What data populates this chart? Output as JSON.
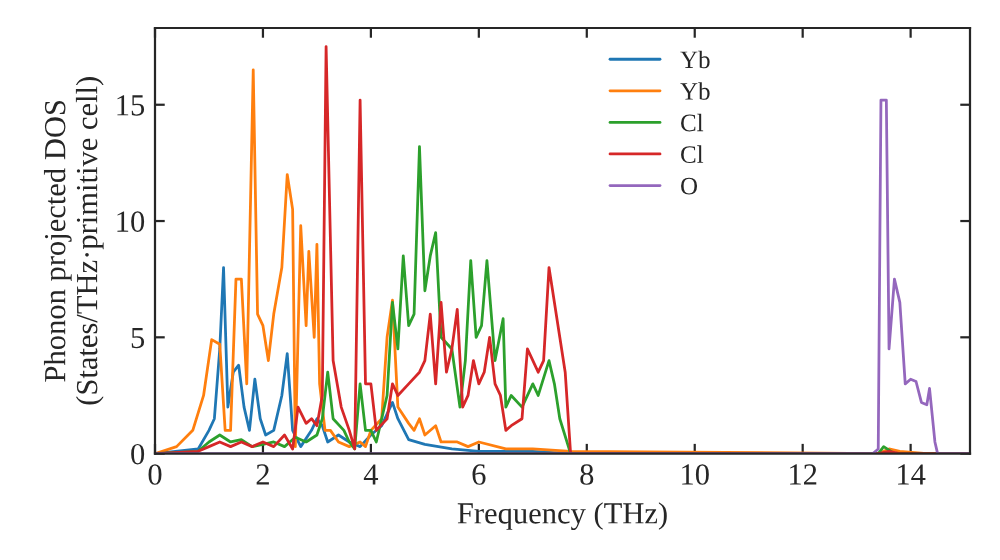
{
  "chart_data": {
    "type": "line",
    "xlabel": "Frequency (THz)",
    "ylabel": "Phonon projected DOS\n(States/THz·primitive cell)",
    "xlim": [
      0,
      15.1
    ],
    "ylim": [
      0,
      18.3
    ],
    "xticks": [
      0,
      2,
      4,
      6,
      8,
      10,
      12,
      14
    ],
    "yticks": [
      0,
      5,
      10,
      15
    ],
    "grid": false,
    "legend": "top",
    "marker": "none",
    "line_style": "solid",
    "series": [
      {
        "name": "Yb",
        "color": "#1f77b4",
        "x": [
          0,
          0.8,
          1.0,
          1.1,
          1.2,
          1.27,
          1.35,
          1.45,
          1.55,
          1.65,
          1.75,
          1.85,
          1.95,
          2.05,
          2.2,
          2.35,
          2.45,
          2.55,
          2.7,
          2.9,
          3.0,
          3.1,
          3.2,
          3.4,
          3.6,
          3.8,
          4.0,
          4.2,
          4.4,
          4.5,
          4.7,
          5.0,
          5.5,
          6.0,
          7.0,
          7.7
        ],
        "values": [
          0,
          0.2,
          1,
          1.5,
          4.5,
          8,
          2,
          3.5,
          3.8,
          2,
          1,
          3.2,
          1.5,
          0.8,
          1,
          2.5,
          4.3,
          1,
          0.3,
          1,
          1.5,
          1.2,
          0.5,
          0.8,
          0.5,
          0.3,
          0.8,
          1.2,
          2.2,
          1.5,
          0.6,
          0.4,
          0.2,
          0.1,
          0.1,
          0
        ]
      },
      {
        "name": "Yb",
        "color": "#ff7f0e",
        "x": [
          0,
          0.4,
          0.7,
          0.9,
          1.05,
          1.2,
          1.3,
          1.4,
          1.5,
          1.6,
          1.7,
          1.82,
          1.9,
          2.0,
          2.1,
          2.2,
          2.35,
          2.45,
          2.55,
          2.6,
          2.7,
          2.8,
          2.85,
          2.95,
          3.0,
          3.05,
          3.15,
          3.25,
          3.4,
          3.6,
          3.8,
          3.9,
          4.0,
          4.2,
          4.3,
          4.4,
          4.5,
          4.7,
          4.8,
          4.9,
          5.0,
          5.2,
          5.3,
          5.6,
          5.8,
          6.0,
          6.5,
          7.0,
          7.7,
          13.4,
          13.6,
          13.8,
          14.3,
          15.1
        ],
        "values": [
          0,
          0.3,
          1,
          2.5,
          4.9,
          4.7,
          1,
          1,
          7.5,
          7.5,
          3,
          16.5,
          6,
          5.5,
          4,
          6,
          8,
          12,
          10.5,
          0.3,
          9.8,
          5.5,
          8.7,
          5,
          9,
          3,
          1,
          1,
          0.5,
          0.3,
          0.5,
          0.3,
          1,
          1.5,
          5,
          6.6,
          2,
          1.3,
          1,
          1.5,
          0.8,
          1.2,
          0.5,
          0.5,
          0.3,
          0.5,
          0.2,
          0.2,
          0.1,
          0,
          0.2,
          0.1,
          0,
          0
        ]
      },
      {
        "name": "Cl",
        "color": "#2ca02c",
        "x": [
          0,
          0.8,
          1.0,
          1.2,
          1.4,
          1.6,
          1.8,
          2.0,
          2.2,
          2.4,
          2.6,
          2.8,
          3.0,
          3.1,
          3.2,
          3.3,
          3.5,
          3.6,
          3.7,
          3.8,
          3.9,
          4.0,
          4.1,
          4.2,
          4.3,
          4.4,
          4.5,
          4.6,
          4.7,
          4.8,
          4.9,
          5.0,
          5.1,
          5.2,
          5.3,
          5.5,
          5.65,
          5.75,
          5.85,
          5.95,
          6.05,
          6.15,
          6.3,
          6.45,
          6.5,
          6.6,
          6.8,
          7.0,
          7.1,
          7.3,
          7.4,
          7.5,
          7.7,
          13.4,
          13.5,
          13.7,
          15.1
        ],
        "values": [
          0,
          0.1,
          0.5,
          0.8,
          0.5,
          0.6,
          0.3,
          0.4,
          0.5,
          0.3,
          0.7,
          0.5,
          0.8,
          1.5,
          3.5,
          1.5,
          1,
          0.5,
          0.2,
          3,
          1,
          1,
          0.5,
          1.5,
          2.5,
          6.5,
          4.5,
          8.5,
          5.5,
          6,
          13.2,
          7,
          8.5,
          9.5,
          5,
          4.5,
          2,
          4,
          8.3,
          5,
          5.5,
          8.3,
          4,
          5.8,
          2,
          2.5,
          2,
          3,
          2.5,
          4,
          3,
          1.5,
          0,
          0,
          0.3,
          0,
          0
        ]
      },
      {
        "name": "Cl",
        "color": "#d62728",
        "x": [
          0,
          0.8,
          1.0,
          1.2,
          1.4,
          1.6,
          1.8,
          2.0,
          2.2,
          2.4,
          2.55,
          2.65,
          2.8,
          2.9,
          3.0,
          3.1,
          3.17,
          3.3,
          3.45,
          3.6,
          3.7,
          3.8,
          3.9,
          4.0,
          4.1,
          4.3,
          4.4,
          4.5,
          4.7,
          4.9,
          5.0,
          5.1,
          5.2,
          5.3,
          5.4,
          5.5,
          5.6,
          5.7,
          5.8,
          5.9,
          6.0,
          6.1,
          6.2,
          6.3,
          6.4,
          6.5,
          6.6,
          6.8,
          6.9,
          7.1,
          7.2,
          7.3,
          7.5,
          7.6,
          7.7,
          13.4,
          13.6,
          13.8,
          15.1
        ],
        "values": [
          0,
          0.1,
          0.3,
          0.5,
          0.3,
          0.5,
          0.3,
          0.5,
          0.3,
          0.8,
          0.2,
          2,
          1.3,
          1.5,
          1.2,
          2.5,
          17.5,
          4,
          2,
          1,
          0.2,
          15.2,
          3,
          3,
          1,
          1.5,
          3,
          2.5,
          3,
          3.5,
          4,
          6,
          3,
          6.5,
          3.5,
          4.5,
          6.2,
          2,
          2.5,
          4,
          3,
          3.5,
          5,
          3,
          2.5,
          1,
          1.2,
          1.5,
          4.5,
          3.5,
          4,
          8,
          5,
          3.5,
          0,
          0,
          0.1,
          0,
          0
        ]
      },
      {
        "name": "O",
        "color": "#9467bd",
        "x": [
          0,
          13.3,
          13.4,
          13.45,
          13.55,
          13.6,
          13.7,
          13.8,
          13.9,
          14.0,
          14.1,
          14.2,
          14.3,
          14.35,
          14.45,
          14.5,
          15.1
        ],
        "values": [
          0,
          0,
          0.2,
          15.2,
          15.2,
          4.5,
          7.5,
          6.5,
          3,
          3.2,
          3.1,
          2.2,
          2.1,
          2.8,
          0.5,
          0,
          0
        ]
      }
    ]
  }
}
